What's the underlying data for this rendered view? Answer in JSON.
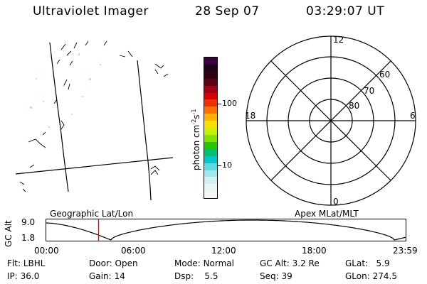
{
  "header": {
    "instrument": "Ultraviolet Imager",
    "date": "28 Sep 07",
    "time": "03:29:07 UT"
  },
  "colorbar": {
    "label_base": "photon cm",
    "label_exp1": "-2",
    "label_s": "s",
    "label_exp2": "-1",
    "tick_100": "100",
    "tick_10": "10",
    "colors": [
      "#3a0040",
      "#20001a",
      "#300010",
      "#5a0018",
      "#a00010",
      "#d80000",
      "#f03000",
      "#ff7000",
      "#ffb000",
      "#f8e000",
      "#c8f000",
      "#80e000",
      "#20c800",
      "#00c078",
      "#00c8c8",
      "#60d8e0",
      "#a0e8f0",
      "#d0f0f4",
      "#e8f4f6",
      "#f6f8f8"
    ]
  },
  "polar": {
    "mlt_12": "12",
    "mlt_18": "18",
    "mlt_6": "6",
    "mlt_0": "0",
    "mlat_60": "60",
    "mlat_70": "70",
    "mlat_80": "80"
  },
  "orbit_plot": {
    "left_label": "Geographic Lat/Lon",
    "right_label": "Apex MLat/MLT",
    "axis_title": "GC Alt",
    "y_top": "9.0",
    "y_bottom": "1.8",
    "x_ticks": [
      "00:00",
      "06:00",
      "12:00",
      "18:00",
      "23:59"
    ],
    "current_time_hours": 3.485
  },
  "status": {
    "filter_label": "Flt:",
    "filter_value": "LBHL",
    "door_label": "Door:",
    "door_value": "Open",
    "mode_label": "Mode:",
    "mode_value": "Normal",
    "gcalt_label": "GC Alt:",
    "gcalt_value": "3.2 Re",
    "glat_label": "GLat:",
    "glat_value": "5.9",
    "ip_label": "IP:",
    "ip_value": "36.0",
    "gain_label": "Gain:",
    "gain_value": "14",
    "dsp_label": "Dsp:",
    "dsp_value": "5.5",
    "seq_label": "Seq:",
    "seq_value": "39",
    "glon_label": "GLon:",
    "glon_value": "274.5"
  }
}
